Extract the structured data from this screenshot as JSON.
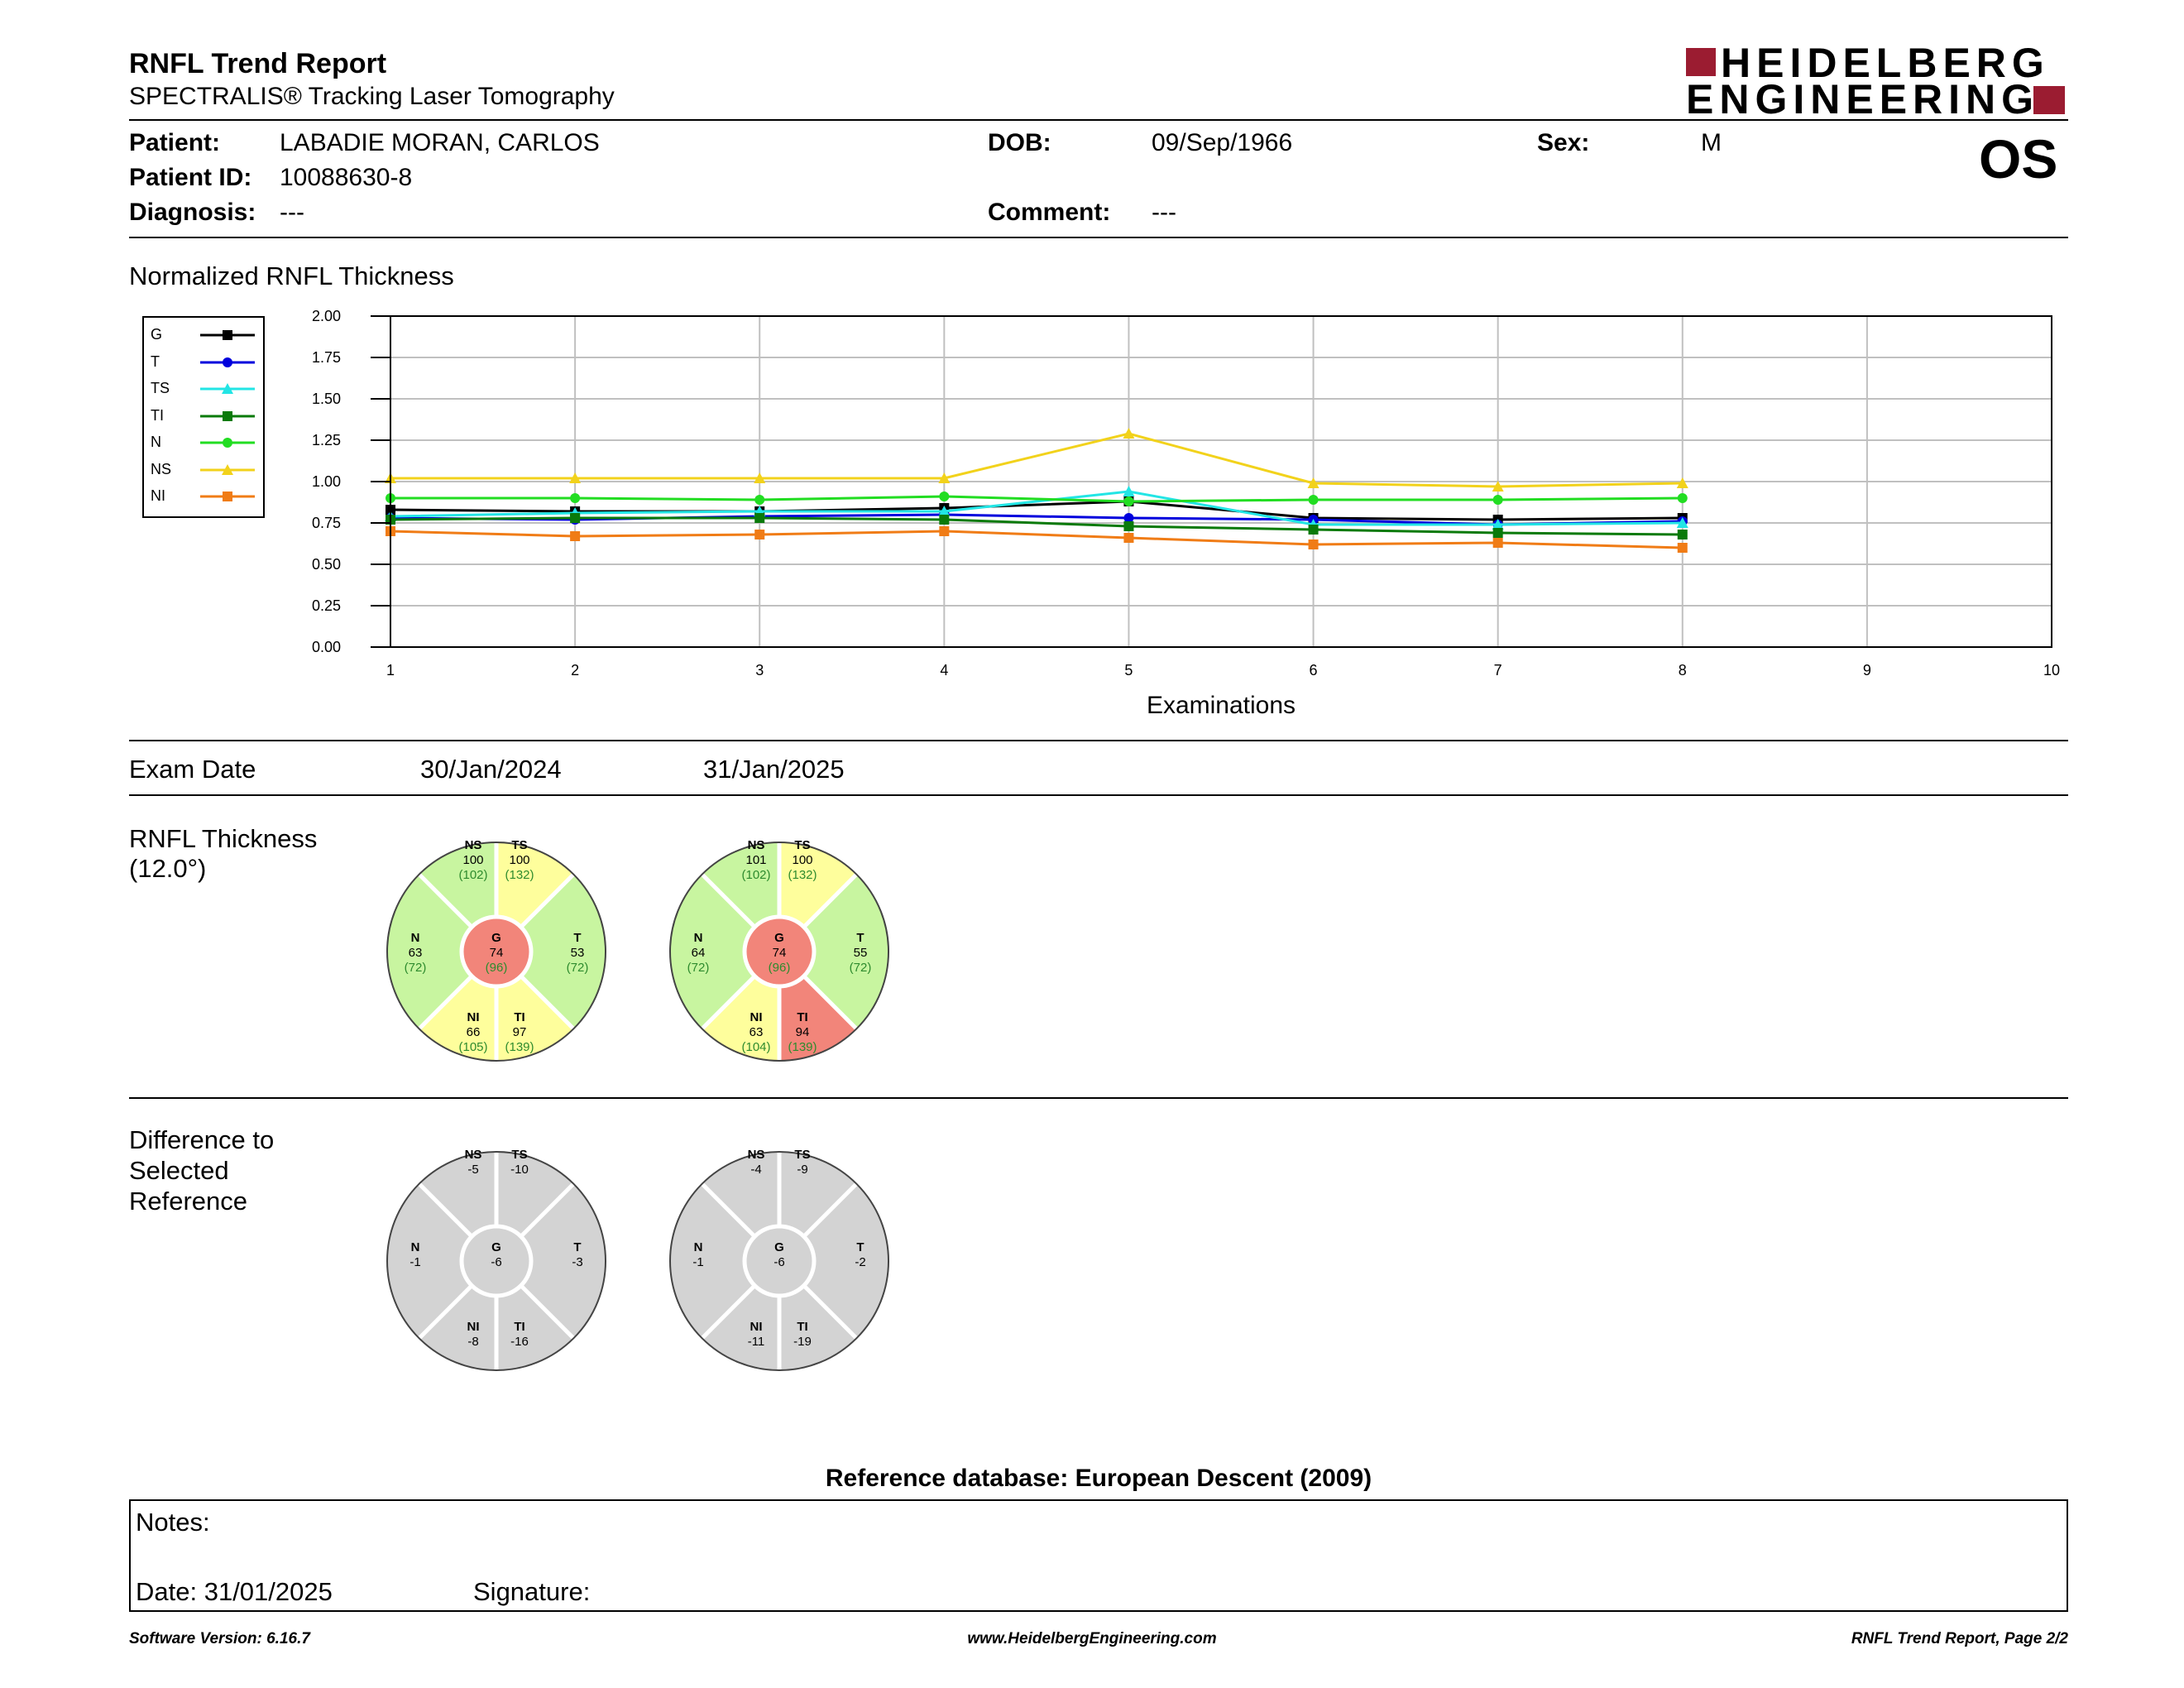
{
  "header": {
    "title": "RNFL Trend Report",
    "subtitle": "SPECTRALIS® Tracking Laser Tomography",
    "logo_line1": "HEIDELBERG",
    "logo_line2": "ENGINEERING",
    "logo_color": "#9b1c31"
  },
  "patient": {
    "patient_label": "Patient:",
    "patient_value": "LABADIE MORAN, CARLOS",
    "id_label": "Patient ID:",
    "id_value": "10088630-8",
    "diagnosis_label": "Diagnosis:",
    "diagnosis_value": "---",
    "dob_label": "DOB:",
    "dob_value": "09/Sep/1966",
    "comment_label": "Comment:",
    "comment_value": "---",
    "sex_label": "Sex:",
    "sex_value": "M",
    "eye": "OS"
  },
  "chart_data": {
    "type": "line",
    "title": "Normalized RNFL Thickness",
    "xlabel": "Examinations",
    "ylabel": "",
    "x": [
      1,
      2,
      3,
      4,
      5,
      6,
      7,
      8
    ],
    "xlim": [
      1,
      10
    ],
    "ylim": [
      0,
      2
    ],
    "x_ticks": [
      "1",
      "2",
      "3",
      "4",
      "5",
      "6",
      "7",
      "8",
      "9",
      "10"
    ],
    "y_ticks": [
      "0.00",
      "0.25",
      "0.50",
      "0.75",
      "1.00",
      "1.25",
      "1.50",
      "1.75",
      "2.00"
    ],
    "grid": true,
    "legend_position": "left",
    "series": [
      {
        "name": "G",
        "color": "#000000",
        "marker": "square",
        "values": [
          0.83,
          0.82,
          0.82,
          0.84,
          0.88,
          0.78,
          0.77,
          0.78
        ]
      },
      {
        "name": "T",
        "color": "#0000dd",
        "marker": "circle",
        "values": [
          0.78,
          0.77,
          0.79,
          0.8,
          0.78,
          0.77,
          0.74,
          0.76
        ]
      },
      {
        "name": "TS",
        "color": "#22e5e5",
        "marker": "triangle",
        "values": [
          0.79,
          0.81,
          0.82,
          0.82,
          0.94,
          0.74,
          0.74,
          0.75
        ]
      },
      {
        "name": "TI",
        "color": "#0a7a0a",
        "marker": "square",
        "values": [
          0.77,
          0.78,
          0.78,
          0.77,
          0.73,
          0.71,
          0.69,
          0.68
        ]
      },
      {
        "name": "N",
        "color": "#22dd22",
        "marker": "circle",
        "values": [
          0.9,
          0.9,
          0.89,
          0.91,
          0.88,
          0.89,
          0.89,
          0.9
        ]
      },
      {
        "name": "NS",
        "color": "#f2d21b",
        "marker": "triangle",
        "values": [
          1.02,
          1.02,
          1.02,
          1.02,
          1.29,
          0.99,
          0.97,
          0.99
        ]
      },
      {
        "name": "NI",
        "color": "#f07c16",
        "marker": "square",
        "values": [
          0.7,
          0.67,
          0.68,
          0.7,
          0.66,
          0.62,
          0.63,
          0.6
        ]
      }
    ]
  },
  "exam": {
    "label": "Exam Date",
    "dates": [
      "30/Jan/2024",
      "31/Jan/2025"
    ]
  },
  "rnfl": {
    "label_line1": "RNFL Thickness",
    "label_line2": "(12.0°)",
    "colors": {
      "green": "#c8f5a0",
      "yellow": "#fefe9c",
      "red": "#f2857a",
      "gray": "#d3d3d3",
      "ref_text": "#2e8b2e"
    },
    "circles": [
      {
        "NS": [
          "100",
          "(102)"
        ],
        "TS": [
          "100",
          "(132)"
        ],
        "N": [
          "63",
          "(72)"
        ],
        "G": [
          "74",
          "(96)"
        ],
        "T": [
          "53",
          "(72)"
        ],
        "NI": [
          "66",
          "(105)"
        ],
        "TI": [
          "97",
          "(139)"
        ],
        "fill": {
          "NS": "green",
          "TS": "yellow",
          "N": "green",
          "G": "red",
          "T": "green",
          "NI": "yellow",
          "TI": "yellow"
        }
      },
      {
        "NS": [
          "101",
          "(102)"
        ],
        "TS": [
          "100",
          "(132)"
        ],
        "N": [
          "64",
          "(72)"
        ],
        "G": [
          "74",
          "(96)"
        ],
        "T": [
          "55",
          "(72)"
        ],
        "NI": [
          "63",
          "(104)"
        ],
        "TI": [
          "94",
          "(139)"
        ],
        "fill": {
          "NS": "green",
          "TS": "yellow",
          "N": "green",
          "G": "red",
          "T": "green",
          "NI": "yellow",
          "TI": "red"
        }
      }
    ]
  },
  "difference": {
    "label_line1": "Difference to",
    "label_line2": "Selected",
    "label_line3": "Reference",
    "circles": [
      {
        "NS": "-5",
        "TS": "-10",
        "N": "-1",
        "G": "-6",
        "T": "-3",
        "NI": "-8",
        "TI": "-16"
      },
      {
        "NS": "-4",
        "TS": "-9",
        "N": "-1",
        "G": "-6",
        "T": "-2",
        "NI": "-11",
        "TI": "-19"
      }
    ]
  },
  "reference_db": "Reference database: European Descent (2009)",
  "notes": {
    "notes_label": "Notes:",
    "date_label": "Date: 31/01/2025",
    "signature_label": "Signature:"
  },
  "footer": {
    "software": "Software Version: 6.16.7",
    "website": "www.HeidelbergEngineering.com",
    "page": "RNFL Trend Report, Page 2/2"
  }
}
